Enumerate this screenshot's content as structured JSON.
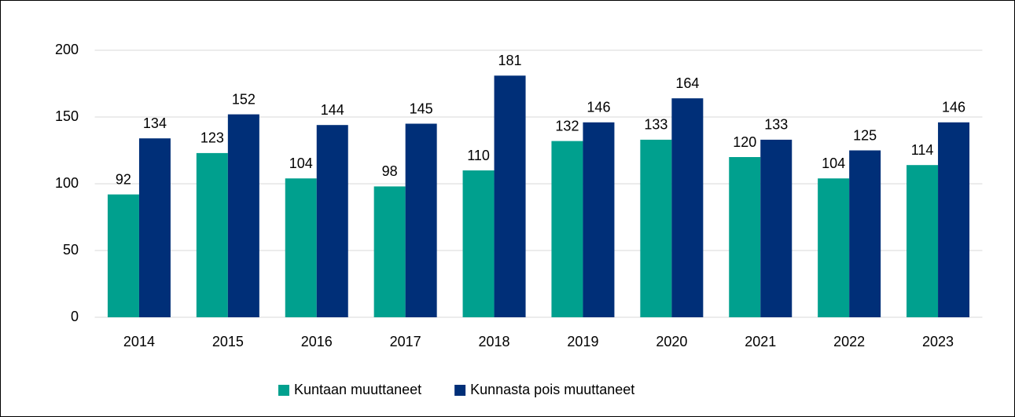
{
  "chart_data": {
    "type": "bar",
    "categories": [
      "2014",
      "2015",
      "2016",
      "2017",
      "2018",
      "2019",
      "2020",
      "2021",
      "2022",
      "2023"
    ],
    "series": [
      {
        "name": "Kuntaan muuttaneet",
        "color": "#00a08e",
        "values": [
          92,
          123,
          104,
          98,
          110,
          132,
          133,
          120,
          104,
          114
        ]
      },
      {
        "name": "Kunnasta pois muuttaneet",
        "color": "#002f78",
        "values": [
          134,
          152,
          144,
          145,
          181,
          146,
          164,
          133,
          125,
          146
        ]
      }
    ],
    "ylim": [
      0,
      200
    ],
    "yticks": [
      0,
      50,
      100,
      150,
      200
    ],
    "grid": true,
    "legend": "bottom"
  }
}
